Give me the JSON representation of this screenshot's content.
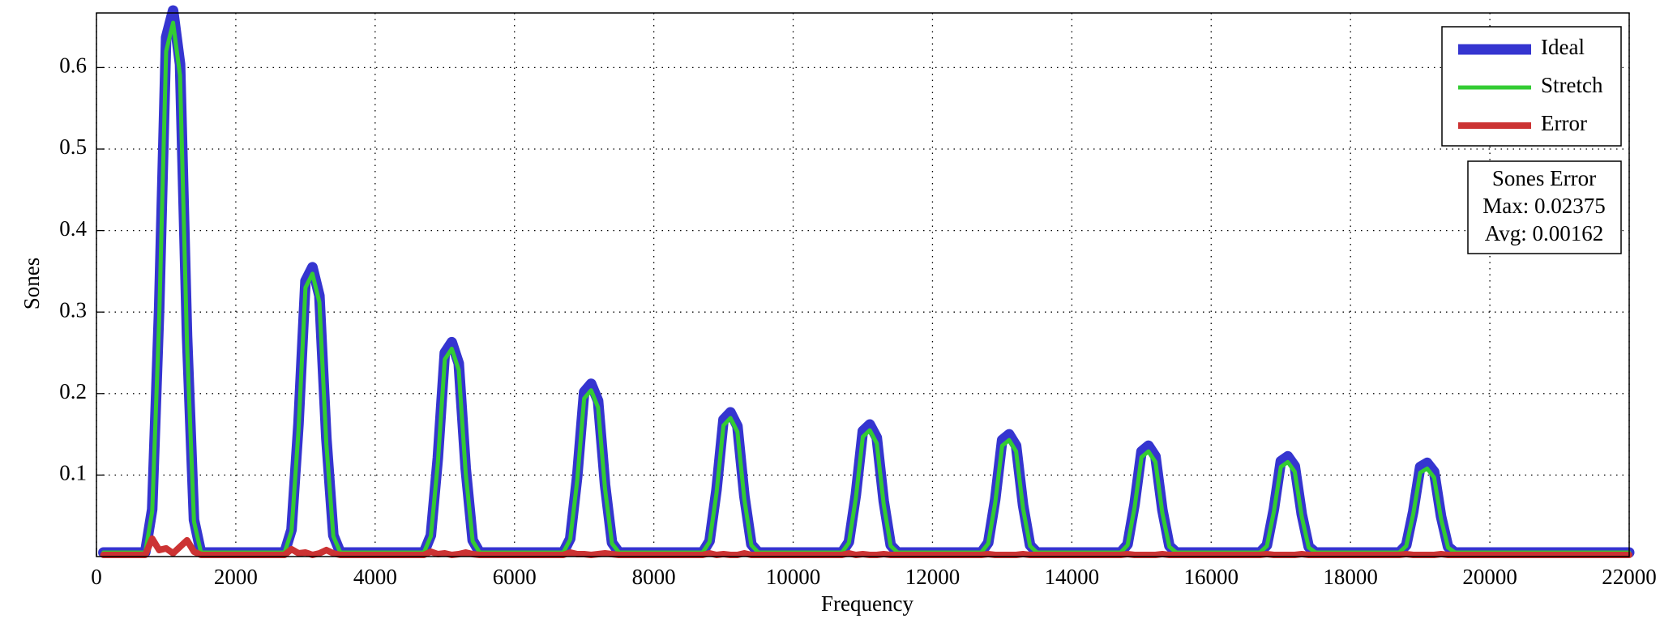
{
  "chart_data": {
    "type": "line",
    "xlabel": "Frequency",
    "ylabel": "Sones",
    "annotations": [
      "Sones Error",
      "Max: 0.02375",
      "Avg: 0.00162"
    ],
    "xlim": [
      0,
      22000
    ],
    "ylim": [
      0,
      0.667
    ],
    "xticks": [
      0,
      2000,
      4000,
      6000,
      8000,
      10000,
      12000,
      14000,
      16000,
      18000,
      20000,
      22000
    ],
    "yticks": [
      0.1,
      0.2,
      0.3,
      0.4,
      0.5,
      0.6
    ],
    "grid": true,
    "legend": "upper right",
    "x": [
      100,
      700,
      800,
      900,
      1000,
      1100,
      1200,
      1300,
      1400,
      1500,
      2700,
      2800,
      2900,
      3000,
      3100,
      3200,
      3300,
      3400,
      3500,
      4700,
      4800,
      4900,
      5000,
      5100,
      5200,
      5300,
      5400,
      5500,
      6700,
      6800,
      6900,
      7000,
      7100,
      7200,
      7300,
      7400,
      7500,
      8700,
      8800,
      8900,
      9000,
      9100,
      9200,
      9300,
      9400,
      9500,
      10700,
      10800,
      10900,
      11000,
      11100,
      11200,
      11300,
      11400,
      11500,
      12700,
      12800,
      12900,
      13000,
      13100,
      13200,
      13300,
      13400,
      13500,
      14700,
      14800,
      14900,
      15000,
      15100,
      15200,
      15300,
      15400,
      15500,
      16700,
      16800,
      16900,
      17000,
      17100,
      17200,
      17300,
      17400,
      17500,
      18700,
      18800,
      18900,
      19000,
      19100,
      19200,
      19300,
      19400,
      19500,
      22000
    ],
    "series": [
      {
        "name": "Ideal",
        "color": "#3535d0",
        "width": 13,
        "values": [
          0.005,
          0.005,
          0.058,
          0.304,
          0.637,
          0.67,
          0.604,
          0.271,
          0.045,
          0.005,
          0.005,
          0.033,
          0.163,
          0.338,
          0.355,
          0.32,
          0.145,
          0.026,
          0.005,
          0.005,
          0.026,
          0.121,
          0.25,
          0.263,
          0.237,
          0.108,
          0.02,
          0.005,
          0.005,
          0.022,
          0.098,
          0.202,
          0.212,
          0.191,
          0.088,
          0.017,
          0.005,
          0.005,
          0.019,
          0.082,
          0.168,
          0.177,
          0.16,
          0.074,
          0.015,
          0.005,
          0.005,
          0.018,
          0.076,
          0.154,
          0.162,
          0.146,
          0.068,
          0.014,
          0.005,
          0.005,
          0.017,
          0.07,
          0.143,
          0.15,
          0.136,
          0.063,
          0.014,
          0.005,
          0.005,
          0.015,
          0.064,
          0.129,
          0.136,
          0.123,
          0.057,
          0.013,
          0.005,
          0.005,
          0.014,
          0.058,
          0.117,
          0.123,
          0.111,
          0.052,
          0.012,
          0.005,
          0.005,
          0.014,
          0.055,
          0.11,
          0.115,
          0.104,
          0.049,
          0.012,
          0.005,
          0.005
        ]
      },
      {
        "name": "Stretch",
        "color": "#33cc33",
        "width": 5,
        "values": [
          0.005,
          0.005,
          0.055,
          0.29,
          0.62,
          0.655,
          0.59,
          0.26,
          0.043,
          0.005,
          0.005,
          0.031,
          0.155,
          0.33,
          0.347,
          0.312,
          0.138,
          0.025,
          0.005,
          0.005,
          0.025,
          0.115,
          0.242,
          0.255,
          0.229,
          0.102,
          0.019,
          0.005,
          0.005,
          0.021,
          0.093,
          0.194,
          0.204,
          0.183,
          0.083,
          0.016,
          0.005,
          0.005,
          0.018,
          0.078,
          0.161,
          0.17,
          0.153,
          0.07,
          0.014,
          0.005,
          0.005,
          0.017,
          0.072,
          0.147,
          0.155,
          0.139,
          0.064,
          0.013,
          0.005,
          0.005,
          0.016,
          0.066,
          0.136,
          0.143,
          0.129,
          0.059,
          0.013,
          0.005,
          0.005,
          0.014,
          0.06,
          0.122,
          0.129,
          0.116,
          0.053,
          0.012,
          0.005,
          0.005,
          0.013,
          0.055,
          0.11,
          0.116,
          0.104,
          0.049,
          0.011,
          0.005,
          0.005,
          0.013,
          0.052,
          0.103,
          0.108,
          0.097,
          0.046,
          0.011,
          0.005,
          0.005
        ]
      },
      {
        "name": "Error",
        "color": "#cc3333",
        "width": 8,
        "values": [
          0.002,
          0.002,
          0.022,
          0.008,
          0.01,
          0.004,
          0.012,
          0.02,
          0.006,
          0.002,
          0.002,
          0.009,
          0.004,
          0.005,
          0.002,
          0.004,
          0.008,
          0.004,
          0.002,
          0.002,
          0.006,
          0.003,
          0.004,
          0.002,
          0.003,
          0.005,
          0.003,
          0.002,
          0.002,
          0.005,
          0.003,
          0.003,
          0.002,
          0.003,
          0.004,
          0.003,
          0.002,
          0.002,
          0.004,
          0.002,
          0.003,
          0.002,
          0.002,
          0.004,
          0.002,
          0.002,
          0.002,
          0.004,
          0.002,
          0.003,
          0.002,
          0.002,
          0.003,
          0.002,
          0.002,
          0.002,
          0.003,
          0.002,
          0.002,
          0.002,
          0.002,
          0.003,
          0.002,
          0.002,
          0.002,
          0.003,
          0.002,
          0.002,
          0.002,
          0.002,
          0.003,
          0.002,
          0.002,
          0.002,
          0.003,
          0.002,
          0.002,
          0.002,
          0.002,
          0.003,
          0.002,
          0.002,
          0.002,
          0.003,
          0.002,
          0.002,
          0.002,
          0.002,
          0.003,
          0.002,
          0.002,
          0.002
        ]
      }
    ]
  }
}
